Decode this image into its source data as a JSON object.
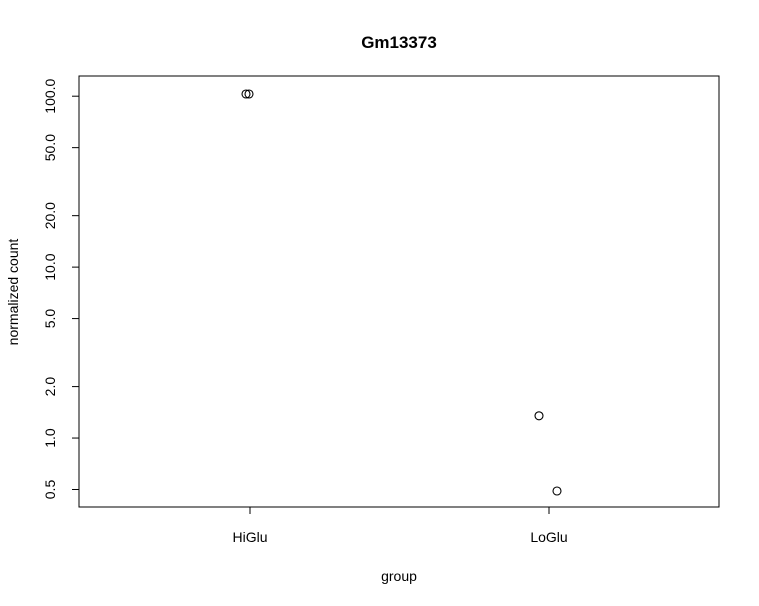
{
  "chart_data": {
    "type": "scatter",
    "title": "Gm13373",
    "xlabel": "group",
    "ylabel": "normalized count",
    "x_scale": "categorical",
    "y_scale": "log",
    "categories": [
      "HiGlu",
      "LoGlu"
    ],
    "y_ticks": [
      "0.5",
      "1.0",
      "2.0",
      "5.0",
      "10.0",
      "20.0",
      "50.0",
      "100.0"
    ],
    "ylim": [
      0.42,
      122
    ],
    "grid": false,
    "legend": "none",
    "marker": "open-circle",
    "colors": {
      "points": "#000000",
      "axes": "#000000",
      "background": "#ffffff"
    },
    "points": [
      {
        "group": "HiGlu",
        "value": 103
      },
      {
        "group": "HiGlu",
        "value": 103
      },
      {
        "group": "LoGlu",
        "value": 1.35
      },
      {
        "group": "LoGlu",
        "value": 0.49
      }
    ]
  }
}
